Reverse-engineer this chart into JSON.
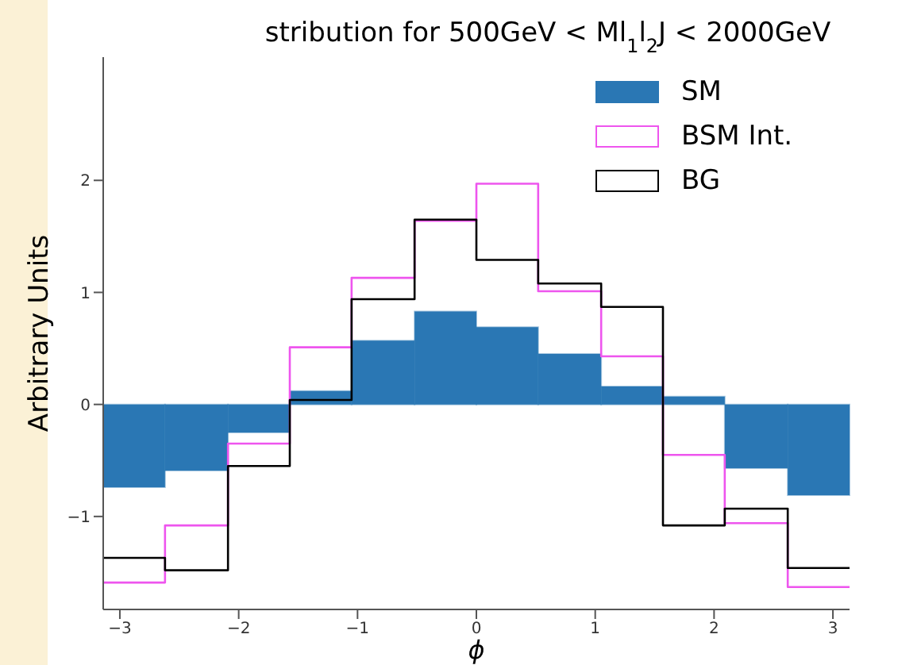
{
  "chart_data": {
    "type": "histogram",
    "title": "stribution for 500GeV < Ml$_{1}$l$_{2}$J < 2000GeV",
    "xlabel": "ϕ",
    "ylabel": "Arbitrary Units",
    "bins": [
      -3.14,
      -2.62,
      -2.09,
      -1.57,
      -1.05,
      -0.52,
      0,
      0.52,
      1.05,
      1.57,
      2.09,
      2.62,
      3.14
    ],
    "series": [
      {
        "name": "SM",
        "type": "histogram",
        "color": "#2a77b4",
        "values": [
          -0.74,
          -0.59,
          -0.25,
          0.12,
          0.57,
          0.83,
          0.69,
          0.45,
          0.16,
          0.07,
          -0.57,
          -0.81
        ]
      },
      {
        "name": "BSM Int.",
        "type": "step",
        "color": "#ee55ee",
        "x": [
          -3.14,
          -2.62,
          -2.09,
          -1.57,
          -1.05,
          -0.52,
          0,
          0.52,
          1.05,
          1.57,
          2.09,
          2.62,
          3.14
        ],
        "values": [
          -1.59,
          -1.08,
          -0.35,
          0.51,
          1.13,
          1.64,
          1.97,
          1.01,
          0.43,
          -0.45,
          -1.06,
          -1.63,
          -1.63
        ]
      },
      {
        "name": "BG",
        "type": "step",
        "color": "#000000",
        "x": [
          -3.14,
          -2.62,
          -2.09,
          -1.57,
          -1.05,
          -0.52,
          0,
          0.52,
          1.05,
          1.57,
          2.09,
          2.62,
          3.14
        ],
        "values": [
          -1.37,
          -1.48,
          -0.55,
          0.04,
          0.94,
          1.65,
          1.29,
          1.08,
          0.87,
          -1.08,
          -0.93,
          -1.46,
          -1.46
        ]
      }
    ],
    "xlim": [
      -3.14,
      3.14
    ],
    "xticks": [
      -3,
      -2,
      -1,
      0,
      1,
      2,
      3
    ],
    "ylim": [
      -1.83,
      3.1
    ],
    "yticks": [
      -1,
      0,
      1,
      2
    ],
    "legend": "top right",
    "grid": false
  }
}
